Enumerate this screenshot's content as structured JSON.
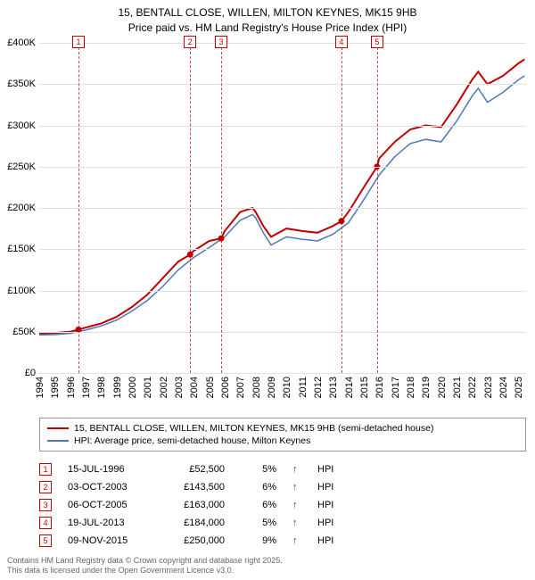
{
  "title": {
    "line1": "15, BENTALL CLOSE, WILLEN, MILTON KEYNES, MK15 9HB",
    "line2": "Price paid vs. HM Land Registry's House Price Index (HPI)"
  },
  "chart": {
    "type": "line",
    "background_color": "#ffffff",
    "grid_color": "#e0e0e0",
    "xlim": [
      1994,
      2025.5
    ],
    "ylim": [
      0,
      400000
    ],
    "ytick_step": 50000,
    "yticks": [
      {
        "v": 0,
        "label": "£0"
      },
      {
        "v": 50000,
        "label": "£50K"
      },
      {
        "v": 100000,
        "label": "£100K"
      },
      {
        "v": 150000,
        "label": "£150K"
      },
      {
        "v": 200000,
        "label": "£200K"
      },
      {
        "v": 250000,
        "label": "£250K"
      },
      {
        "v": 300000,
        "label": "£300K"
      },
      {
        "v": 350000,
        "label": "£350K"
      },
      {
        "v": 400000,
        "label": "£400K"
      }
    ],
    "xticks": [
      1994,
      1995,
      1996,
      1997,
      1998,
      1999,
      2000,
      2001,
      2002,
      2003,
      2004,
      2005,
      2006,
      2007,
      2008,
      2009,
      2010,
      2011,
      2012,
      2013,
      2014,
      2015,
      2016,
      2017,
      2018,
      2019,
      2020,
      2021,
      2022,
      2023,
      2024,
      2025
    ],
    "label_fontsize": 11,
    "series": [
      {
        "name": "price_paid",
        "label": "15, BENTALL CLOSE, WILLEN, MILTON KEYNES, MK15 9HB (semi-detached house)",
        "color": "#c00000",
        "line_width": 2,
        "data": [
          [
            1994,
            48000
          ],
          [
            1995,
            48500
          ],
          [
            1996,
            50000
          ],
          [
            1996.54,
            52500
          ],
          [
            1997,
            55000
          ],
          [
            1998,
            60000
          ],
          [
            1999,
            68000
          ],
          [
            2000,
            80000
          ],
          [
            2001,
            95000
          ],
          [
            2002,
            115000
          ],
          [
            2003,
            135000
          ],
          [
            2003.76,
            143500
          ],
          [
            2004,
            148000
          ],
          [
            2005,
            160000
          ],
          [
            2005.77,
            163000
          ],
          [
            2006,
            172000
          ],
          [
            2007,
            195000
          ],
          [
            2007.8,
            200000
          ],
          [
            2008,
            195000
          ],
          [
            2008.5,
            178000
          ],
          [
            2009,
            165000
          ],
          [
            2010,
            175000
          ],
          [
            2011,
            172000
          ],
          [
            2012,
            170000
          ],
          [
            2013,
            178000
          ],
          [
            2013.55,
            184000
          ],
          [
            2014,
            195000
          ],
          [
            2015,
            225000
          ],
          [
            2015.86,
            250000
          ],
          [
            2016,
            260000
          ],
          [
            2017,
            280000
          ],
          [
            2018,
            295000
          ],
          [
            2019,
            300000
          ],
          [
            2020,
            298000
          ],
          [
            2021,
            325000
          ],
          [
            2022,
            355000
          ],
          [
            2022.4,
            365000
          ],
          [
            2023,
            350000
          ],
          [
            2024,
            360000
          ],
          [
            2025,
            375000
          ],
          [
            2025.4,
            380000
          ]
        ]
      },
      {
        "name": "hpi",
        "label": "HPI: Average price, semi-detached house, Milton Keynes",
        "color": "#4d79b6",
        "line_width": 1.5,
        "data": [
          [
            1994,
            46000
          ],
          [
            1995,
            46500
          ],
          [
            1996,
            48000
          ],
          [
            1997,
            52000
          ],
          [
            1998,
            57000
          ],
          [
            1999,
            64000
          ],
          [
            2000,
            75000
          ],
          [
            2001,
            88000
          ],
          [
            2002,
            105000
          ],
          [
            2003,
            125000
          ],
          [
            2004,
            140000
          ],
          [
            2005,
            152000
          ],
          [
            2006,
            165000
          ],
          [
            2007,
            185000
          ],
          [
            2007.8,
            192000
          ],
          [
            2008,
            188000
          ],
          [
            2008.5,
            170000
          ],
          [
            2009,
            155000
          ],
          [
            2010,
            165000
          ],
          [
            2011,
            162000
          ],
          [
            2012,
            160000
          ],
          [
            2013,
            168000
          ],
          [
            2014,
            182000
          ],
          [
            2015,
            210000
          ],
          [
            2016,
            240000
          ],
          [
            2017,
            262000
          ],
          [
            2018,
            278000
          ],
          [
            2019,
            283000
          ],
          [
            2020,
            280000
          ],
          [
            2021,
            305000
          ],
          [
            2022,
            335000
          ],
          [
            2022.4,
            345000
          ],
          [
            2023,
            328000
          ],
          [
            2024,
            340000
          ],
          [
            2025,
            355000
          ],
          [
            2025.4,
            360000
          ]
        ]
      }
    ],
    "markers": [
      {
        "n": "1",
        "x": 1996.54,
        "y": 52500
      },
      {
        "n": "2",
        "x": 2003.76,
        "y": 143500
      },
      {
        "n": "3",
        "x": 2005.77,
        "y": 163000
      },
      {
        "n": "4",
        "x": 2013.55,
        "y": 184000
      },
      {
        "n": "5",
        "x": 2015.86,
        "y": 250000
      }
    ],
    "marker_color": "#c00000",
    "marker_dash": "4,3"
  },
  "legend": {
    "border_color": "#999999",
    "items": [
      {
        "color": "#c00000",
        "label": "15, BENTALL CLOSE, WILLEN, MILTON KEYNES, MK15 9HB (semi-detached house)"
      },
      {
        "color": "#4d79b6",
        "label": "HPI: Average price, semi-detached house, Milton Keynes"
      }
    ]
  },
  "sales": [
    {
      "n": "1",
      "date": "15-JUL-1996",
      "price": "£52,500",
      "pct": "5%",
      "arrow": "↑",
      "hpi": "HPI"
    },
    {
      "n": "2",
      "date": "03-OCT-2003",
      "price": "£143,500",
      "pct": "6%",
      "arrow": "↑",
      "hpi": "HPI"
    },
    {
      "n": "3",
      "date": "06-OCT-2005",
      "price": "£163,000",
      "pct": "6%",
      "arrow": "↑",
      "hpi": "HPI"
    },
    {
      "n": "4",
      "date": "19-JUL-2013",
      "price": "£184,000",
      "pct": "5%",
      "arrow": "↑",
      "hpi": "HPI"
    },
    {
      "n": "5",
      "date": "09-NOV-2015",
      "price": "£250,000",
      "pct": "9%",
      "arrow": "↑",
      "hpi": "HPI"
    }
  ],
  "footer": {
    "line1": "Contains HM Land Registry data © Crown copyright and database right 2025.",
    "line2": "This data is licensed under the Open Government Licence v3.0."
  }
}
